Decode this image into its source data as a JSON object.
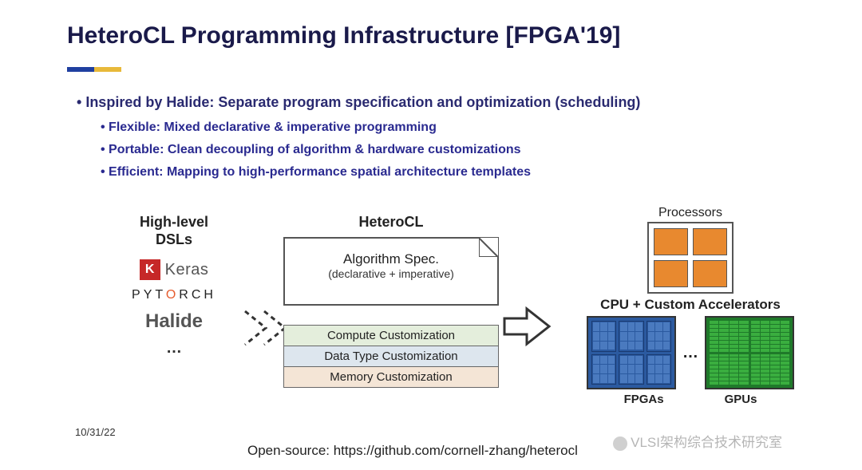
{
  "title": "HeteroCL Programming Infrastructure [FPGA'19]",
  "underline_colors": [
    "#1f3fa0",
    "#e8b93a"
  ],
  "bullets": {
    "main": "Inspired by Halide:  Separate program specification and optimization (scheduling)",
    "subs": [
      "Flexible: Mixed declarative & imperative programming",
      "Portable: Clean decoupling of algorithm & hardware customizations",
      "Efficient: Mapping to high-performance spatial architecture templates"
    ]
  },
  "dsl": {
    "title_line1": "High-level",
    "title_line2": "DSLs",
    "keras_badge": "K",
    "keras_text": "Keras",
    "pytorch_pre": "PYT",
    "pytorch_flame": "O",
    "pytorch_post": "RCH",
    "halide": "Halide",
    "ellipsis": "…"
  },
  "heterocl": {
    "title": "HeteroCL",
    "doc_line1": "Algorithm Spec.",
    "doc_line2": "(declarative + imperative)",
    "stack": {
      "compute": "Compute Customization",
      "dtype": "Data Type Customization",
      "memory": "Memory Customization"
    },
    "colors": {
      "compute_bg": "#e4eedc",
      "dtype_bg": "#dde6ee",
      "memory_bg": "#f4e5d6"
    }
  },
  "right": {
    "processors_label": "Processors",
    "processor_color": "#e8892f",
    "accel_label": "CPU + Custom Accelerators",
    "fpga_label": "FPGAs",
    "gpu_label": "GPUs",
    "fpga_color": "#2b5aa0",
    "gpu_color": "#1f7a2a",
    "ellipsis": "…"
  },
  "footer": {
    "date": "10/31/22",
    "link": "Open-source: https://github.com/cornell-zhang/heterocl"
  },
  "watermark": "VLSI架构综合技术研究室"
}
